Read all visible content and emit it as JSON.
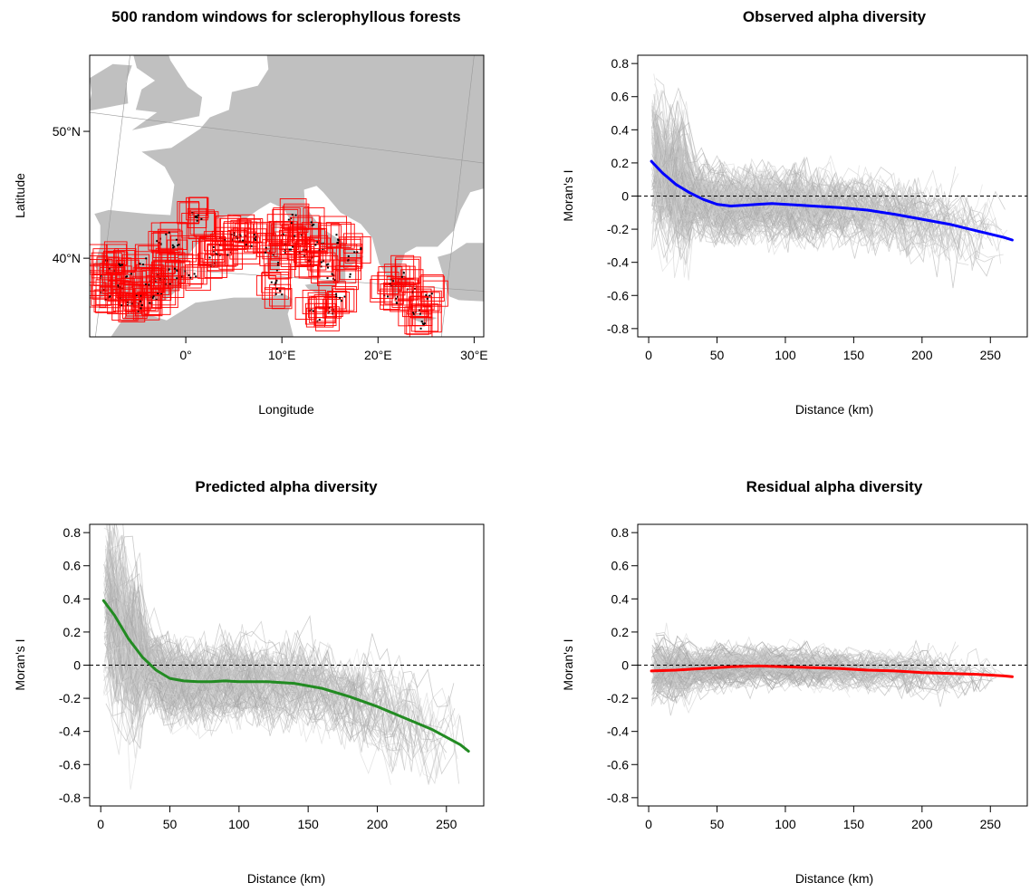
{
  "chart_data": [
    {
      "type": "map",
      "title": "500 random windows for sclerophyllous forests",
      "xlabel": "Longitude",
      "ylabel": "Latitude",
      "xlim": [
        -10,
        31
      ],
      "ylim": [
        33.8,
        56
      ],
      "xticks": [
        0,
        10,
        20,
        30
      ],
      "xtick_labels": [
        "0°",
        "10°E",
        "20°E",
        "30°E"
      ],
      "yticks": [
        40,
        50
      ],
      "ytick_labels": [
        "40°N",
        "50°N"
      ],
      "land_color": "#c0c0c0",
      "window_color": "#ff0000",
      "point_color": "#000000",
      "windows": [
        {
          "x": -9.0,
          "y": 37.6
        },
        {
          "x": -8.6,
          "y": 38.4
        },
        {
          "x": -8.2,
          "y": 37.0
        },
        {
          "x": -7.6,
          "y": 39.2
        },
        {
          "x": -7.0,
          "y": 37.8
        },
        {
          "x": -6.4,
          "y": 36.6
        },
        {
          "x": -6.0,
          "y": 38.6
        },
        {
          "x": -5.4,
          "y": 36.2
        },
        {
          "x": -5.0,
          "y": 37.4
        },
        {
          "x": -4.4,
          "y": 36.4
        },
        {
          "x": -4.0,
          "y": 38.0
        },
        {
          "x": -3.6,
          "y": 36.8
        },
        {
          "x": -3.2,
          "y": 38.6
        },
        {
          "x": -2.6,
          "y": 37.4
        },
        {
          "x": -2.0,
          "y": 38.2
        },
        {
          "x": -1.6,
          "y": 39.4
        },
        {
          "x": -8.4,
          "y": 39.8
        },
        {
          "x": -6.8,
          "y": 39.8
        },
        {
          "x": -4.6,
          "y": 39.8
        },
        {
          "x": -2.8,
          "y": 41.4
        },
        {
          "x": -1.8,
          "y": 41.8
        },
        {
          "x": -1.0,
          "y": 41.2
        },
        {
          "x": -0.6,
          "y": 38.8
        },
        {
          "x": 0.6,
          "y": 38.8
        },
        {
          "x": 1.0,
          "y": 43.6
        },
        {
          "x": 1.4,
          "y": 43.2
        },
        {
          "x": 2.6,
          "y": 39.8
        },
        {
          "x": 3.0,
          "y": 40.6
        },
        {
          "x": 3.6,
          "y": 41.4
        },
        {
          "x": 4.2,
          "y": 40.2
        },
        {
          "x": 5.0,
          "y": 41.8
        },
        {
          "x": 5.8,
          "y": 41.6
        },
        {
          "x": 6.6,
          "y": 41.2
        },
        {
          "x": 7.4,
          "y": 41.8
        },
        {
          "x": 8.6,
          "y": 40.6
        },
        {
          "x": 9.2,
          "y": 39.4
        },
        {
          "x": 9.0,
          "y": 38.0
        },
        {
          "x": 9.6,
          "y": 37.4
        },
        {
          "x": 10.2,
          "y": 42.0
        },
        {
          "x": 10.6,
          "y": 40.8
        },
        {
          "x": 11.0,
          "y": 43.2
        },
        {
          "x": 11.6,
          "y": 41.8
        },
        {
          "x": 12.2,
          "y": 40.6
        },
        {
          "x": 12.8,
          "y": 39.8
        },
        {
          "x": 13.4,
          "y": 42.6
        },
        {
          "x": 13.8,
          "y": 41.0
        },
        {
          "x": 14.4,
          "y": 39.6
        },
        {
          "x": 15.0,
          "y": 38.6
        },
        {
          "x": 13.0,
          "y": 36.0
        },
        {
          "x": 14.0,
          "y": 35.4
        },
        {
          "x": 15.0,
          "y": 35.8
        },
        {
          "x": 16.0,
          "y": 37.0
        },
        {
          "x": 16.6,
          "y": 38.6
        },
        {
          "x": 17.2,
          "y": 40.2
        },
        {
          "x": 17.8,
          "y": 40.8
        },
        {
          "x": 15.6,
          "y": 41.6
        },
        {
          "x": 21.0,
          "y": 37.2
        },
        {
          "x": 21.6,
          "y": 38.2
        },
        {
          "x": 22.2,
          "y": 36.8
        },
        {
          "x": 22.8,
          "y": 38.8
        },
        {
          "x": 23.4,
          "y": 37.6
        },
        {
          "x": 24.0,
          "y": 36.0
        },
        {
          "x": 24.8,
          "y": 34.8
        },
        {
          "x": 25.2,
          "y": 37.2
        }
      ]
    },
    {
      "type": "line",
      "title": "Observed alpha diversity",
      "xlabel": "Distance (km)",
      "ylabel": "Moran's I",
      "xlim": [
        -8,
        277
      ],
      "ylim": [
        -0.85,
        0.85
      ],
      "xticks": [
        0,
        50,
        100,
        150,
        200,
        250
      ],
      "yticks": [
        -0.8,
        -0.6,
        -0.4,
        -0.2,
        0,
        0.2,
        0.4,
        0.6,
        0.8
      ],
      "reference_line": 0,
      "background_line_color": "#b8b8b8",
      "background_spread": {
        "near": 0.45,
        "mid": 0.22,
        "far": 0.26
      },
      "series": [
        {
          "color": "#0000ff",
          "x": [
            2,
            10,
            20,
            30,
            40,
            50,
            60,
            70,
            80,
            90,
            100,
            120,
            140,
            160,
            180,
            200,
            220,
            240,
            260,
            266
          ],
          "y": [
            0.21,
            0.14,
            0.07,
            0.02,
            -0.02,
            -0.05,
            -0.06,
            -0.055,
            -0.05,
            -0.045,
            -0.05,
            -0.06,
            -0.07,
            -0.085,
            -0.11,
            -0.14,
            -0.17,
            -0.21,
            -0.25,
            -0.265
          ]
        }
      ]
    },
    {
      "type": "line",
      "title": "Predicted alpha diversity",
      "xlabel": "Distance (km)",
      "ylabel": "Moran's I",
      "xlim": [
        -8,
        277
      ],
      "ylim": [
        -0.85,
        0.85
      ],
      "xticks": [
        0,
        50,
        100,
        150,
        200,
        250
      ],
      "yticks": [
        -0.8,
        -0.6,
        -0.4,
        -0.2,
        0,
        0.2,
        0.4,
        0.6,
        0.8
      ],
      "reference_line": 0,
      "background_line_color": "#b8b8b8",
      "background_spread": {
        "near": 0.55,
        "mid": 0.25,
        "far": 0.32
      },
      "series": [
        {
          "color": "#228b22",
          "x": [
            2,
            10,
            20,
            30,
            40,
            50,
            60,
            70,
            80,
            90,
            100,
            120,
            140,
            160,
            180,
            200,
            220,
            240,
            260,
            266
          ],
          "y": [
            0.39,
            0.3,
            0.16,
            0.05,
            -0.03,
            -0.08,
            -0.095,
            -0.1,
            -0.1,
            -0.095,
            -0.1,
            -0.1,
            -0.11,
            -0.14,
            -0.19,
            -0.25,
            -0.32,
            -0.39,
            -0.48,
            -0.52
          ]
        }
      ]
    },
    {
      "type": "line",
      "title": "Residual alpha diversity",
      "xlabel": "Distance (km)",
      "ylabel": "Moran's I",
      "xlim": [
        -8,
        277
      ],
      "ylim": [
        -0.85,
        0.85
      ],
      "xticks": [
        0,
        50,
        100,
        150,
        200,
        250
      ],
      "yticks": [
        -0.8,
        -0.6,
        -0.4,
        -0.2,
        0,
        0.2,
        0.4,
        0.6,
        0.8
      ],
      "reference_line": 0,
      "background_line_color": "#b8b8b8",
      "background_spread": {
        "near": 0.18,
        "mid": 0.12,
        "far": 0.14
      },
      "series": [
        {
          "color": "#ff0000",
          "x": [
            2,
            20,
            40,
            60,
            80,
            100,
            120,
            140,
            160,
            180,
            200,
            220,
            240,
            260,
            266
          ],
          "y": [
            -0.035,
            -0.03,
            -0.02,
            -0.01,
            -0.005,
            -0.01,
            -0.015,
            -0.02,
            -0.03,
            -0.035,
            -0.045,
            -0.05,
            -0.055,
            -0.065,
            -0.07
          ]
        }
      ]
    }
  ]
}
